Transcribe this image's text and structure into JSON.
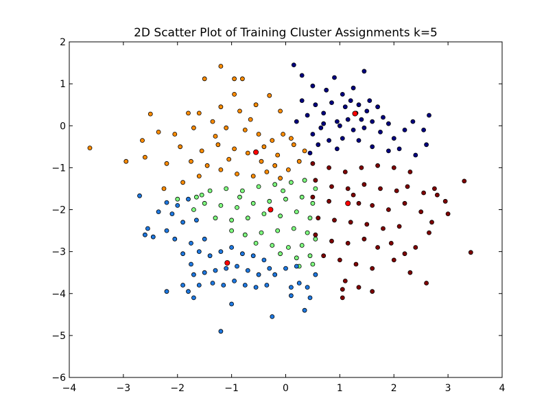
{
  "chart_data": {
    "type": "scatter",
    "title": "2D Scatter Plot of Training Cluster Assignments k=5",
    "xlabel": "",
    "ylabel": "",
    "xlim": [
      -4,
      4
    ],
    "ylim": [
      -6,
      2
    ],
    "x_ticks": [
      -4,
      -3,
      -2,
      -1,
      0,
      1,
      2,
      3,
      4
    ],
    "x_tick_labels": [
      "−4",
      "−3",
      "−2",
      "−1",
      "0",
      "1",
      "2",
      "3",
      "4"
    ],
    "y_ticks": [
      -6,
      -5,
      -4,
      -3,
      -2,
      -1,
      0,
      1,
      2
    ],
    "y_tick_labels": [
      "−6",
      "−5",
      "−4",
      "−3",
      "−2",
      "−1",
      "0",
      "1",
      "2"
    ],
    "grid": false,
    "legend": "none",
    "marker_edge_color": "#000000",
    "centroid_color": "#ff0000",
    "series": [
      {
        "color": "#00007f",
        "centroid": [
          1.28,
          0.29
        ],
        "points": [
          [
            0.3,
            1.2
          ],
          [
            0.15,
            1.45
          ],
          [
            0.5,
            0.95
          ],
          [
            0.75,
            0.85
          ],
          [
            0.9,
            1.15
          ],
          [
            1.05,
            0.75
          ],
          [
            0.55,
            0.5
          ],
          [
            0.4,
            0.25
          ],
          [
            0.7,
            0.3
          ],
          [
            0.65,
            -0.05
          ],
          [
            0.5,
            -0.2
          ],
          [
            0.8,
            -0.35
          ],
          [
            0.95,
            -0.55
          ],
          [
            0.6,
            -0.45
          ],
          [
            1.0,
            0.0
          ],
          [
            1.1,
            0.45
          ],
          [
            1.2,
            0.6
          ],
          [
            1.35,
            0.5
          ],
          [
            1.5,
            0.35
          ],
          [
            1.6,
            0.1
          ],
          [
            1.45,
            -0.05
          ],
          [
            1.25,
            -0.1
          ],
          [
            1.15,
            0.15
          ],
          [
            1.3,
            0.3
          ],
          [
            1.4,
            0.15
          ],
          [
            1.55,
            0.6
          ],
          [
            1.7,
            0.45
          ],
          [
            1.8,
            0.2
          ],
          [
            1.9,
            0.05
          ],
          [
            1.75,
            -0.15
          ],
          [
            2.0,
            -0.3
          ],
          [
            2.2,
            -0.1
          ],
          [
            2.35,
            0.1
          ],
          [
            2.1,
            -0.55
          ],
          [
            2.4,
            -0.7
          ],
          [
            2.6,
            -0.45
          ],
          [
            2.65,
            0.25
          ],
          [
            2.55,
            -0.1
          ],
          [
            1.45,
            1.3
          ],
          [
            1.25,
            0.9
          ],
          [
            0.85,
            0.55
          ],
          [
            0.95,
            0.1
          ],
          [
            1.05,
            -0.3
          ],
          [
            1.35,
            -0.35
          ],
          [
            1.6,
            -0.5
          ],
          [
            1.9,
            -0.6
          ],
          [
            0.3,
            0.6
          ],
          [
            0.2,
            0.1
          ],
          [
            0.45,
            -0.65
          ],
          [
            0.7,
            0.05
          ]
        ]
      },
      {
        "color": "#ff8c00",
        "centroid": [
          -0.55,
          -0.63
        ],
        "points": [
          [
            -1.2,
            1.42
          ],
          [
            -1.5,
            1.12
          ],
          [
            -0.95,
            1.12
          ],
          [
            -0.8,
            1.12
          ],
          [
            -0.95,
            0.75
          ],
          [
            -0.3,
            0.72
          ],
          [
            -0.55,
            0.5
          ],
          [
            -0.85,
            0.35
          ],
          [
            -1.2,
            0.45
          ],
          [
            -1.6,
            0.3
          ],
          [
            -1.35,
            0.1
          ],
          [
            -1.1,
            -0.05
          ],
          [
            -0.75,
            -0.1
          ],
          [
            -0.5,
            -0.2
          ],
          [
            -0.25,
            -0.35
          ],
          [
            -0.05,
            -0.2
          ],
          [
            0.15,
            -0.45
          ],
          [
            0.35,
            -0.6
          ],
          [
            0.25,
            -0.85
          ],
          [
            0.05,
            -1.05
          ],
          [
            -0.2,
            -0.95
          ],
          [
            -0.45,
            -0.85
          ],
          [
            -0.7,
            -0.65
          ],
          [
            -0.95,
            -0.55
          ],
          [
            -1.25,
            -0.45
          ],
          [
            -1.55,
            -0.6
          ],
          [
            -1.75,
            -0.85
          ],
          [
            -1.45,
            -0.95
          ],
          [
            -1.2,
            -1.05
          ],
          [
            -0.9,
            -1.15
          ],
          [
            -0.6,
            -1.2
          ],
          [
            -0.35,
            -1.1
          ],
          [
            -0.1,
            -1.25
          ],
          [
            -1.95,
            -0.5
          ],
          [
            -2.05,
            -0.2
          ],
          [
            -2.35,
            -0.15
          ],
          [
            -2.2,
            -0.9
          ],
          [
            -2.65,
            -0.35
          ],
          [
            -2.6,
            -0.75
          ],
          [
            -2.5,
            0.28
          ],
          [
            -2.95,
            -0.85
          ],
          [
            -3.62,
            -0.53
          ],
          [
            -1.8,
            0.3
          ],
          [
            -1.3,
            -0.25
          ],
          [
            -0.65,
            0.15
          ],
          [
            -0.1,
            0.35
          ],
          [
            -2.25,
            -1.5
          ],
          [
            -1.9,
            -1.35
          ],
          [
            -1.6,
            -1.2
          ],
          [
            -1.05,
            -0.8
          ],
          [
            -0.4,
            -0.5
          ],
          [
            -0.15,
            -0.7
          ],
          [
            0.1,
            -0.3
          ],
          [
            -1.7,
            -0.05
          ]
        ]
      },
      {
        "color": "#7f0000",
        "centroid": [
          1.15,
          -1.85
        ],
        "points": [
          [
            0.5,
            -0.9
          ],
          [
            0.8,
            -1.0
          ],
          [
            1.1,
            -1.1
          ],
          [
            1.4,
            -1.0
          ],
          [
            1.7,
            -0.95
          ],
          [
            2.0,
            -1.0
          ],
          [
            2.3,
            -1.1
          ],
          [
            0.55,
            -1.3
          ],
          [
            0.85,
            -1.45
          ],
          [
            1.15,
            -1.5
          ],
          [
            1.45,
            -1.4
          ],
          [
            1.75,
            -1.5
          ],
          [
            2.05,
            -1.55
          ],
          [
            0.5,
            -1.7
          ],
          [
            0.8,
            -1.8
          ],
          [
            1.35,
            -1.85
          ],
          [
            1.6,
            -1.9
          ],
          [
            1.9,
            -2.0
          ],
          [
            2.2,
            -1.85
          ],
          [
            0.6,
            -2.2
          ],
          [
            0.9,
            -2.25
          ],
          [
            1.2,
            -2.3
          ],
          [
            1.5,
            -2.35
          ],
          [
            1.8,
            -2.45
          ],
          [
            2.1,
            -2.4
          ],
          [
            0.55,
            -2.6
          ],
          [
            0.85,
            -2.75
          ],
          [
            1.15,
            -2.8
          ],
          [
            1.45,
            -2.7
          ],
          [
            1.7,
            -2.9
          ],
          [
            0.7,
            -3.1
          ],
          [
            1.0,
            -3.2
          ],
          [
            1.3,
            -3.3
          ],
          [
            1.6,
            -3.4
          ],
          [
            2.0,
            -3.2
          ],
          [
            2.3,
            -3.5
          ],
          [
            1.1,
            -3.7
          ],
          [
            1.05,
            -3.9
          ],
          [
            1.35,
            -3.85
          ],
          [
            1.6,
            -3.95
          ],
          [
            1.05,
            -4.1
          ],
          [
            2.25,
            -1.45
          ],
          [
            2.55,
            -1.6
          ],
          [
            2.5,
            -2.05
          ],
          [
            2.75,
            -1.5
          ],
          [
            2.8,
            -1.65
          ],
          [
            2.95,
            -1.8
          ],
          [
            3.0,
            -2.1
          ],
          [
            2.7,
            -2.3
          ],
          [
            2.65,
            -2.55
          ],
          [
            2.4,
            -2.9
          ],
          [
            2.2,
            -3.05
          ],
          [
            2.6,
            -3.75
          ],
          [
            3.3,
            -1.32
          ],
          [
            3.42,
            -3.02
          ],
          [
            1.95,
            -2.8
          ],
          [
            1.25,
            -1.65
          ]
        ]
      },
      {
        "color": "#7fff7f",
        "centroid": [
          -0.28,
          -2.0
        ],
        "points": [
          [
            -2.0,
            -1.75
          ],
          [
            -1.65,
            -1.7
          ],
          [
            -1.4,
            -1.55
          ],
          [
            -1.1,
            -1.5
          ],
          [
            -0.8,
            -1.55
          ],
          [
            -0.5,
            -1.45
          ],
          [
            -0.2,
            -1.4
          ],
          [
            0.1,
            -1.35
          ],
          [
            0.35,
            -1.3
          ],
          [
            -1.5,
            -1.85
          ],
          [
            -1.2,
            -1.9
          ],
          [
            -0.9,
            -1.95
          ],
          [
            -0.6,
            -1.85
          ],
          [
            -0.3,
            -1.8
          ],
          [
            0.0,
            -1.75
          ],
          [
            0.3,
            -1.7
          ],
          [
            0.5,
            -1.85
          ],
          [
            -1.3,
            -2.2
          ],
          [
            -1.0,
            -2.25
          ],
          [
            -0.7,
            -2.2
          ],
          [
            -0.4,
            -2.1
          ],
          [
            -0.1,
            -2.15
          ],
          [
            0.2,
            -2.05
          ],
          [
            0.45,
            -2.2
          ],
          [
            -1.0,
            -2.5
          ],
          [
            -0.75,
            -2.6
          ],
          [
            -0.45,
            -2.55
          ],
          [
            -0.15,
            -2.5
          ],
          [
            0.15,
            -2.45
          ],
          [
            0.4,
            -2.55
          ],
          [
            -0.55,
            -2.8
          ],
          [
            -0.25,
            -2.85
          ],
          [
            0.05,
            -2.9
          ],
          [
            0.3,
            -2.85
          ],
          [
            0.55,
            -2.7
          ],
          [
            -0.1,
            -3.05
          ],
          [
            0.2,
            -3.15
          ],
          [
            0.45,
            -3.1
          ],
          [
            0.5,
            -3.3
          ],
          [
            0.25,
            -3.35
          ],
          [
            -1.55,
            -1.65
          ],
          [
            -1.7,
            -2.0
          ],
          [
            -0.85,
            -1.7
          ],
          [
            -0.05,
            -1.55
          ],
          [
            0.55,
            -1.5
          ]
        ]
      },
      {
        "color": "#1e78e0",
        "centroid": [
          -1.08,
          -3.27
        ],
        "points": [
          [
            -2.7,
            -1.67
          ],
          [
            -2.2,
            -1.83
          ],
          [
            -2.0,
            -1.9
          ],
          [
            -1.8,
            -1.75
          ],
          [
            -2.35,
            -2.05
          ],
          [
            -2.1,
            -2.1
          ],
          [
            -1.9,
            -2.3
          ],
          [
            -1.65,
            -2.25
          ],
          [
            -2.55,
            -2.45
          ],
          [
            -2.6,
            -2.6
          ],
          [
            -2.45,
            -2.65
          ],
          [
            -2.2,
            -2.5
          ],
          [
            -2.05,
            -2.7
          ],
          [
            -1.75,
            -2.8
          ],
          [
            -1.5,
            -2.7
          ],
          [
            -1.9,
            -3.05
          ],
          [
            -1.75,
            -3.3
          ],
          [
            -1.6,
            -3.0
          ],
          [
            -1.4,
            -3.1
          ],
          [
            -1.2,
            -3.0
          ],
          [
            -1.0,
            -2.9
          ],
          [
            -0.8,
            -3.05
          ],
          [
            -0.6,
            -3.1
          ],
          [
            -0.4,
            -3.2
          ],
          [
            -1.7,
            -3.55
          ],
          [
            -1.5,
            -3.5
          ],
          [
            -1.3,
            -3.45
          ],
          [
            -1.1,
            -3.4
          ],
          [
            -0.9,
            -3.35
          ],
          [
            -0.7,
            -3.45
          ],
          [
            -0.5,
            -3.55
          ],
          [
            -0.3,
            -3.4
          ],
          [
            -1.6,
            -3.8
          ],
          [
            -1.35,
            -3.75
          ],
          [
            -1.15,
            -3.8
          ],
          [
            -0.95,
            -3.7
          ],
          [
            -0.75,
            -3.8
          ],
          [
            -0.55,
            -3.85
          ],
          [
            -0.35,
            -3.8
          ],
          [
            -1.8,
            -3.95
          ],
          [
            -1.7,
            -4.1
          ],
          [
            -1.9,
            -3.8
          ],
          [
            -2.2,
            -3.95
          ],
          [
            -1.0,
            -4.25
          ],
          [
            -1.2,
            -4.9
          ],
          [
            -0.25,
            -4.55
          ],
          [
            -0.2,
            -3.55
          ],
          [
            0.0,
            -3.4
          ],
          [
            0.1,
            -3.85
          ],
          [
            0.25,
            -3.75
          ],
          [
            0.2,
            -3.35
          ],
          [
            0.4,
            -3.85
          ],
          [
            0.1,
            -4.05
          ],
          [
            0.35,
            -4.4
          ],
          [
            0.55,
            -3.55
          ],
          [
            0.45,
            -4.1
          ]
        ]
      }
    ]
  }
}
